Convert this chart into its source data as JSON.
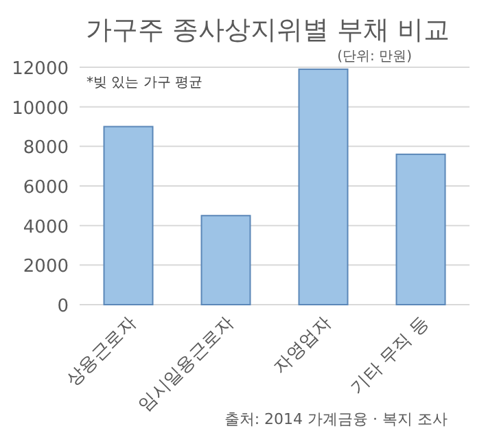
{
  "chart_data": {
    "type": "bar",
    "title": "가구주 종사상지위별 부채 비교",
    "subtitle": "(단위: 만원)",
    "categories": [
      "상용근로자",
      "임시일용근로자",
      "자영업자",
      "기타 무직 등"
    ],
    "values": [
      9000,
      4500,
      11900,
      7600
    ],
    "color": "#9dc3e6",
    "ylim": [
      0,
      12000
    ],
    "yticks": [
      0,
      2000,
      4000,
      6000,
      8000,
      10000,
      12000
    ],
    "grid": "y",
    "annotations": [
      "*빚 있는 가구 평균",
      "출처: 2014 가계금융 · 복지 조사"
    ]
  }
}
